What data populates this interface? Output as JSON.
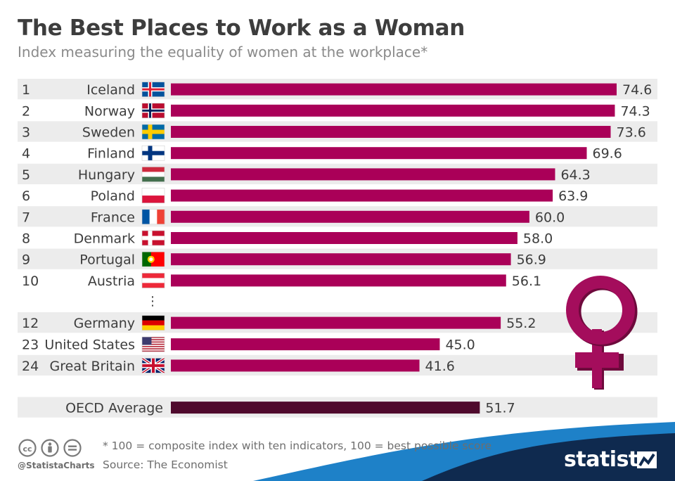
{
  "title": "The Best Places to Work as a Woman",
  "subtitle": "Index measuring the equality of women at the workplace*",
  "chart_data": {
    "type": "bar",
    "orientation": "horizontal",
    "rows": [
      {
        "rank": "1",
        "country": "Iceland",
        "value": 74.6,
        "label": "74.6",
        "flag": "iceland-flag"
      },
      {
        "rank": "2",
        "country": "Norway",
        "value": 74.3,
        "label": "74.3",
        "flag": "norway-flag"
      },
      {
        "rank": "3",
        "country": "Sweden",
        "value": 73.6,
        "label": "73.6",
        "flag": "sweden-flag"
      },
      {
        "rank": "4",
        "country": "Finland",
        "value": 69.6,
        "label": "69.6",
        "flag": "finland-flag"
      },
      {
        "rank": "5",
        "country": "Hungary",
        "value": 64.3,
        "label": "64.3",
        "flag": "hungary-flag"
      },
      {
        "rank": "6",
        "country": "Poland",
        "value": 63.9,
        "label": "63.9",
        "flag": "poland-flag"
      },
      {
        "rank": "7",
        "country": "France",
        "value": 60.0,
        "label": "60.0",
        "flag": "france-flag"
      },
      {
        "rank": "8",
        "country": "Denmark",
        "value": 58.0,
        "label": "58.0",
        "flag": "denmark-flag"
      },
      {
        "rank": "9",
        "country": "Portugal",
        "value": 56.9,
        "label": "56.9",
        "flag": "portugal-flag"
      },
      {
        "rank": "10",
        "country": "Austria",
        "value": 56.1,
        "label": "56.1",
        "flag": "austria-flag"
      },
      {
        "rank": "12",
        "country": "Germany",
        "value": 55.2,
        "label": "55.2",
        "flag": "germany-flag"
      },
      {
        "rank": "23",
        "country": "United States",
        "value": 45.0,
        "label": "45.0",
        "flag": "usa-flag"
      },
      {
        "rank": "24",
        "country": "Great Britain",
        "value": 41.6,
        "label": "41.6",
        "flag": "uk-flag"
      }
    ],
    "gap_marker": "⋮",
    "average": {
      "label": "OECD Average",
      "value": 51.7,
      "display": "51.7"
    },
    "xlim": [
      0,
      74.6
    ],
    "colors": {
      "bar": "#aa0058",
      "average_bar": "#4f0a2d",
      "stripe": "#ececec",
      "venus": "#a40d5c"
    }
  },
  "footer": {
    "note": "* 100 = composite index with ten indicators, 100 = best possible score",
    "source": "Source: The Economist",
    "handle": "@StatistaCharts",
    "brand": "statista"
  },
  "icons": [
    "cc-icon",
    "by-icon",
    "nd-icon",
    "venus-symbol-icon",
    "statista-logo-icon"
  ]
}
